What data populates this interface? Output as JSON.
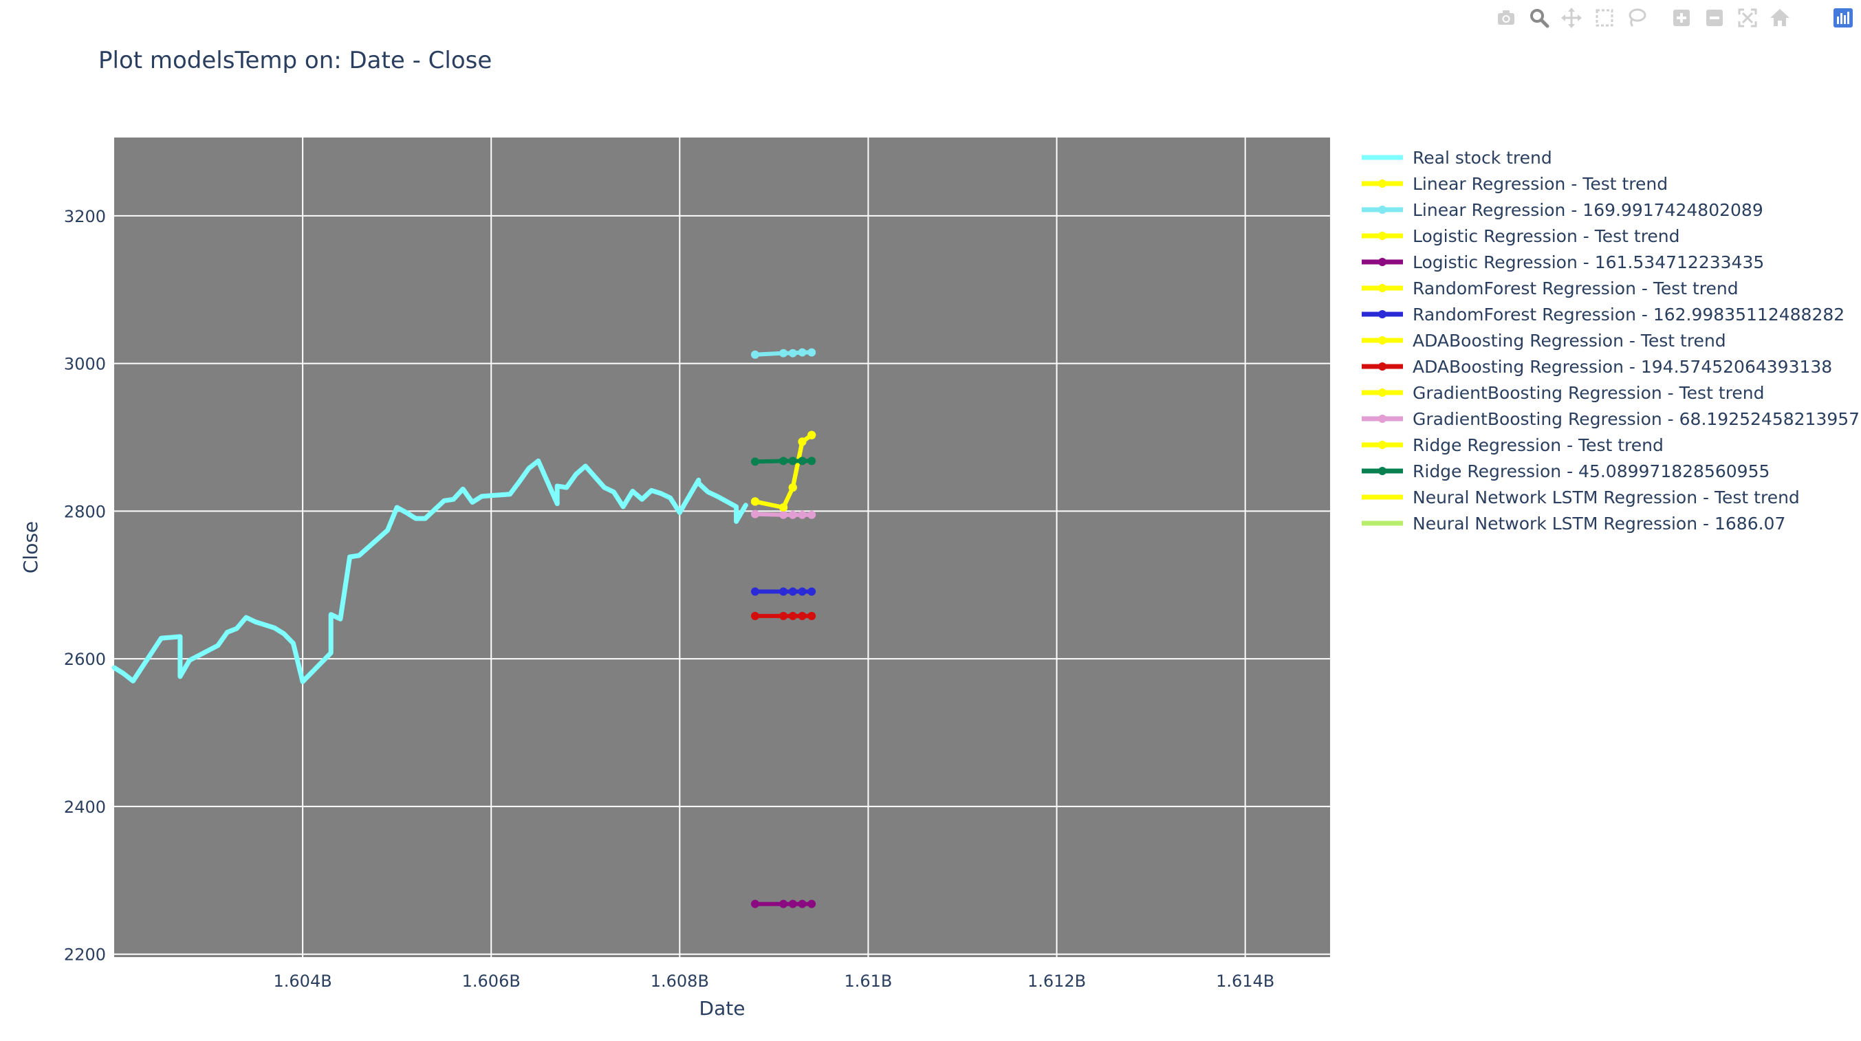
{
  "toolbar": {
    "buttons": [
      {
        "name": "camera-icon",
        "label": "Download plot as a png",
        "active": false
      },
      {
        "name": "zoom-icon",
        "label": "Zoom",
        "active": true
      },
      {
        "name": "pan-icon",
        "label": "Pan",
        "active": false
      },
      {
        "name": "box-select-icon",
        "label": "Box Select",
        "active": false
      },
      {
        "name": "lasso-select-icon",
        "label": "Lasso Select",
        "active": false
      },
      {
        "name": "zoom-in-icon",
        "label": "Zoom in",
        "active": false
      },
      {
        "name": "zoom-out-icon",
        "label": "Zoom out",
        "active": false
      },
      {
        "name": "autoscale-icon",
        "label": "Autoscale",
        "active": false
      },
      {
        "name": "reset-axes-icon",
        "label": "Reset axes",
        "active": false
      },
      {
        "name": "plotly-logo-icon",
        "label": "Produced with Plotly",
        "active": false
      }
    ]
  },
  "chart_data": {
    "type": "line",
    "title": "Plot modelsTemp on: Date - Close",
    "xlabel": "Date",
    "ylabel": "Close",
    "xlim": [
      1.602,
      1.6149
    ],
    "ylim": [
      2196,
      3306
    ],
    "x_ticks": [
      {
        "value": 1.604,
        "label": "1.604B"
      },
      {
        "value": 1.606,
        "label": "1.606B"
      },
      {
        "value": 1.608,
        "label": "1.608B"
      },
      {
        "value": 1.61,
        "label": "1.61B"
      },
      {
        "value": 1.612,
        "label": "1.612B"
      },
      {
        "value": 1.614,
        "label": "1.614B"
      }
    ],
    "y_ticks": [
      2200,
      2400,
      2600,
      2800,
      3000,
      3200
    ],
    "plot_background": "#808080",
    "grid": true,
    "legend": "right",
    "x_unit_note": "B",
    "series": [
      {
        "name": "Real stock trend",
        "color": "#7fffff",
        "mode": "lines",
        "x": [
          1.602,
          1.6021,
          1.6022,
          1.6025,
          1.6027,
          1.6027,
          1.6028,
          1.6031,
          1.6032,
          1.6033,
          1.6034,
          1.6035,
          1.6036,
          1.6037,
          1.6038,
          1.6039,
          1.604,
          1.6043,
          1.6043,
          1.6044,
          1.6045,
          1.6046,
          1.6049,
          1.605,
          1.6051,
          1.6052,
          1.6053,
          1.6055,
          1.6056,
          1.6057,
          1.6058,
          1.6059,
          1.606,
          1.6062,
          1.6063,
          1.6064,
          1.6065,
          1.6067,
          1.6067,
          1.6068,
          1.6069,
          1.607,
          1.6072,
          1.6073,
          1.6074,
          1.6075,
          1.6076,
          1.6077,
          1.6078,
          1.6079,
          1.608,
          1.6082,
          1.6082,
          1.6083,
          1.6084,
          1.6086,
          1.6086,
          1.6087
        ],
        "values": [
          2588,
          2580,
          2570,
          2628,
          2630,
          2576,
          2598,
          2618,
          2636,
          2641,
          2656,
          2650,
          2646,
          2642,
          2634,
          2621,
          2569,
          2608,
          2660,
          2654,
          2738,
          2740,
          2774,
          2805,
          2798,
          2790,
          2790,
          2814,
          2816,
          2830,
          2812,
          2820,
          2821,
          2823,
          2840,
          2858,
          2868,
          2810,
          2834,
          2832,
          2850,
          2861,
          2832,
          2826,
          2806,
          2827,
          2816,
          2828,
          2824,
          2818,
          2798,
          2842,
          2838,
          2826,
          2820,
          2806,
          2786,
          2808
        ]
      },
      {
        "name": "Linear Regression - Test trend",
        "color": "#ffff00",
        "mode": "lines+markers",
        "x": [
          1.6088,
          1.6091,
          1.6092,
          1.6093,
          1.6094
        ],
        "values": [
          2813,
          2805,
          2832,
          2894,
          2903
        ]
      },
      {
        "name": "Linear Regression - 169.9917424802089",
        "color": "#7fe8f0",
        "mode": "lines+markers",
        "x": [
          1.6088,
          1.6091,
          1.6092,
          1.6093,
          1.6094
        ],
        "values": [
          3012,
          3014,
          3014,
          3015,
          3015
        ]
      },
      {
        "name": "Logistic Regression - Test trend",
        "color": "#ffff00",
        "mode": "lines+markers",
        "x": [
          1.6088,
          1.6091,
          1.6092,
          1.6093,
          1.6094
        ],
        "values": [
          2813,
          2805,
          2832,
          2894,
          2903
        ]
      },
      {
        "name": "Logistic Regression - 161.534712233435",
        "color": "#8b0a82",
        "mode": "lines+markers",
        "x": [
          1.6088,
          1.6091,
          1.6092,
          1.6093,
          1.6094
        ],
        "values": [
          2268,
          2268,
          2268,
          2268,
          2268
        ]
      },
      {
        "name": "RandomForest Regression - Test trend",
        "color": "#ffff00",
        "mode": "lines+markers",
        "x": [
          1.6088,
          1.6091,
          1.6092,
          1.6093,
          1.6094
        ],
        "values": [
          2813,
          2805,
          2832,
          2894,
          2903
        ]
      },
      {
        "name": "RandomForest Regression - 162.99835112488282",
        "color": "#2a2ad6",
        "mode": "lines+markers",
        "x": [
          1.6088,
          1.6091,
          1.6092,
          1.6093,
          1.6094
        ],
        "values": [
          2691,
          2691,
          2691,
          2691,
          2691
        ]
      },
      {
        "name": "ADABoosting Regression - Test trend",
        "color": "#ffff00",
        "mode": "lines+markers",
        "x": [
          1.6088,
          1.6091,
          1.6092,
          1.6093,
          1.6094
        ],
        "values": [
          2813,
          2805,
          2832,
          2894,
          2903
        ]
      },
      {
        "name": "ADABoosting Regression - 194.57452064393138",
        "color": "#d40d0d",
        "mode": "lines+markers",
        "x": [
          1.6088,
          1.6091,
          1.6092,
          1.6093,
          1.6094
        ],
        "values": [
          2658,
          2658,
          2658,
          2658,
          2658
        ]
      },
      {
        "name": "GradientBoosting Regression - Test trend",
        "color": "#ffff00",
        "mode": "lines+markers",
        "x": [
          1.6088,
          1.6091,
          1.6092,
          1.6093,
          1.6094
        ],
        "values": [
          2813,
          2805,
          2832,
          2894,
          2903
        ]
      },
      {
        "name": "GradientBoosting Regression - 68.19252458213957",
        "color": "#e29ed3",
        "mode": "lines+markers",
        "x": [
          1.6088,
          1.6091,
          1.6092,
          1.6093,
          1.6094
        ],
        "values": [
          2796,
          2795,
          2795,
          2795,
          2795
        ]
      },
      {
        "name": "Ridge Regression - Test trend",
        "color": "#ffff00",
        "mode": "lines+markers",
        "x": [
          1.6088,
          1.6091,
          1.6092,
          1.6093,
          1.6094
        ],
        "values": [
          2813,
          2805,
          2832,
          2894,
          2903
        ]
      },
      {
        "name": "Ridge Regression - 45.089971828560955",
        "color": "#08804f",
        "mode": "lines+markers",
        "x": [
          1.6088,
          1.6091,
          1.6092,
          1.6093,
          1.6094
        ],
        "values": [
          2867,
          2868,
          2868,
          2868,
          2868
        ]
      },
      {
        "name": "Neural Network LSTM Regression - Test trend",
        "color": "#ffff00",
        "mode": "lines",
        "x": [],
        "values": []
      },
      {
        "name": "Neural Network LSTM Regression - 1686.07",
        "color": "#b8ee6c",
        "mode": "lines",
        "x": [],
        "values": []
      }
    ]
  }
}
